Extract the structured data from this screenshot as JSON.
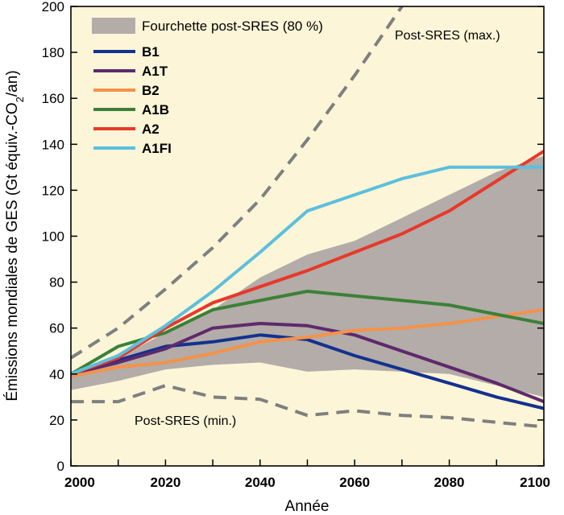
{
  "chart_data": {
    "type": "line",
    "xlabel": "Année",
    "ylabel": "Émissions mondiales de GES (Gt équiv.-CO",
    "ylabel_sub": "2",
    "ylabel_end": "/an)",
    "xlim": [
      2000,
      2100
    ],
    "ylim": [
      0,
      200
    ],
    "x_ticks": [
      "2000",
      "2020",
      "2040",
      "2060",
      "2080",
      "2100"
    ],
    "x_tick_values": [
      2000,
      2020,
      2040,
      2060,
      2080,
      2100
    ],
    "y_ticks": [
      "0",
      "20",
      "40",
      "60",
      "80",
      "100",
      "120",
      "140",
      "160",
      "180",
      "200"
    ],
    "y_tick_values": [
      0,
      20,
      40,
      60,
      80,
      100,
      120,
      140,
      160,
      180,
      200
    ],
    "grid": false,
    "legend_position": "top-left",
    "band": {
      "name": "Fourchette post-SRES (80 %)",
      "color": "#b3aca8",
      "x": [
        2000,
        2010,
        2020,
        2030,
        2040,
        2050,
        2060,
        2070,
        2080,
        2090,
        2100
      ],
      "upper": [
        40,
        47,
        58,
        68,
        82,
        92,
        98,
        108,
        118,
        128,
        135
      ],
      "lower": [
        33,
        37,
        42,
        44,
        45,
        41,
        42,
        41,
        40,
        35,
        30
      ]
    },
    "series": [
      {
        "name": "B1",
        "color": "#13318f",
        "x": [
          2000,
          2010,
          2020,
          2030,
          2040,
          2050,
          2060,
          2070,
          2080,
          2090,
          2100
        ],
        "values": [
          40,
          46,
          52,
          54,
          57,
          55,
          48,
          42,
          36,
          30,
          25
        ]
      },
      {
        "name": "A1T",
        "color": "#5e2a6b",
        "x": [
          2000,
          2010,
          2020,
          2030,
          2040,
          2050,
          2060,
          2070,
          2080,
          2090,
          2100
        ],
        "values": [
          40,
          45,
          51,
          60,
          62,
          61,
          57,
          50,
          43,
          36,
          28
        ]
      },
      {
        "name": "B2",
        "color": "#f5924a",
        "x": [
          2000,
          2010,
          2020,
          2030,
          2040,
          2050,
          2060,
          2070,
          2080,
          2090,
          2100
        ],
        "values": [
          39,
          43,
          45,
          49,
          54,
          56,
          59,
          60,
          62,
          65,
          68
        ]
      },
      {
        "name": "A1B",
        "color": "#3c8038",
        "x": [
          2000,
          2010,
          2020,
          2030,
          2040,
          2050,
          2060,
          2070,
          2080,
          2090,
          2100
        ],
        "values": [
          40,
          52,
          58,
          68,
          72,
          76,
          74,
          72,
          70,
          66,
          62
        ]
      },
      {
        "name": "A2",
        "color": "#e8382a",
        "x": [
          2000,
          2010,
          2020,
          2030,
          2040,
          2050,
          2060,
          2070,
          2080,
          2090,
          2100
        ],
        "values": [
          40,
          47,
          60,
          71,
          78,
          85,
          93,
          101,
          111,
          124,
          137
        ]
      },
      {
        "name": "A1FI",
        "color": "#5cbfdc",
        "x": [
          2000,
          2010,
          2020,
          2030,
          2040,
          2050,
          2060,
          2070,
          2080,
          2090,
          2100
        ],
        "values": [
          40,
          48,
          61,
          76,
          93,
          111,
          118,
          125,
          130,
          130,
          130
        ]
      }
    ],
    "dashed_lines": [
      {
        "label": "Post-SRES (max.)",
        "color": "#7f7f7f",
        "x": [
          2000,
          2010,
          2020,
          2030,
          2040,
          2050,
          2060,
          2070
        ],
        "values": [
          47,
          60,
          77,
          95,
          116,
          142,
          170,
          200
        ]
      },
      {
        "label": "Post-SRES (min.)",
        "color": "#7f7f7f",
        "x": [
          2000,
          2010,
          2020,
          2030,
          2040,
          2050,
          2060,
          2070,
          2080,
          2090,
          2100
        ],
        "values": [
          28,
          28,
          35,
          30,
          29,
          22,
          24,
          22,
          21,
          19,
          17
        ]
      }
    ]
  },
  "colors": {
    "plot_background": "#fcf5d8",
    "axis": "#000000"
  }
}
